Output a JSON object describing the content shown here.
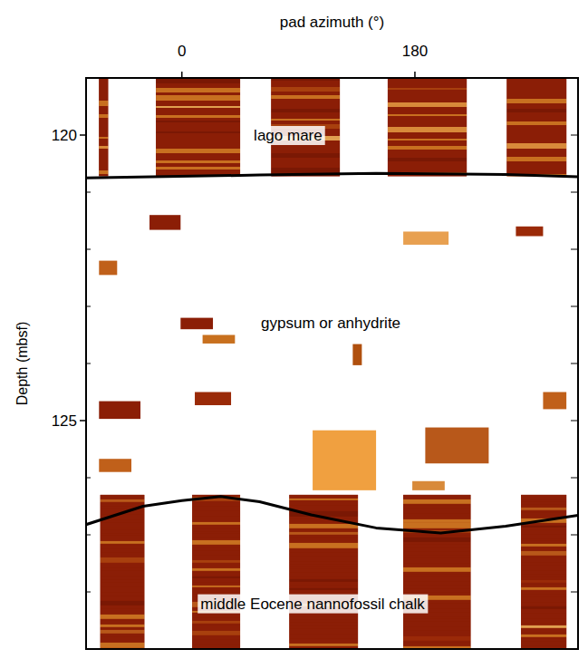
{
  "chart_data": {
    "type": "borehole_image",
    "xlabel": "pad azimuth (°)",
    "ylabel": "Depth (mbsf)",
    "xlim": [
      -74,
      306
    ],
    "xticks": [
      0,
      180
    ],
    "ylim": [
      119,
      129
    ],
    "yticks": [
      120,
      125
    ],
    "yticks_minor": [
      121,
      122,
      123,
      124,
      126,
      127,
      128
    ],
    "color": "#8b1e06",
    "sections": [
      {
        "depth_range": [
          119,
          120.72
        ],
        "azimuth_ranges": [
          [
            -64,
            -57
          ],
          [
            -20,
            45
          ],
          [
            69,
            122
          ],
          [
            159,
            220
          ],
          [
            251,
            297
          ]
        ]
      },
      {
        "depth_range": [
          126.3,
          129
        ],
        "azimuth_ranges": [
          [
            -63,
            -29
          ],
          [
            8,
            45
          ],
          [
            83,
            136
          ],
          [
            171,
            223
          ],
          [
            262,
            297
          ]
        ]
      }
    ],
    "patches": [
      {
        "azimuth": [
          -25,
          -1
        ],
        "depth": [
          121.4,
          121.66
        ],
        "color": "#8b1e06"
      },
      {
        "azimuth": [
          171,
          206
        ],
        "depth": [
          121.69,
          121.92
        ],
        "color": "#e8a050"
      },
      {
        "azimuth": [
          258,
          279
        ],
        "depth": [
          121.6,
          121.77
        ],
        "color": "#9a2a08"
      },
      {
        "azimuth": [
          -64,
          -50
        ],
        "depth": [
          122.2,
          122.45
        ],
        "color": "#c0601a"
      },
      {
        "azimuth": [
          -1,
          24
        ],
        "depth": [
          123.2,
          123.4
        ],
        "color": "#8b1e06"
      },
      {
        "azimuth": [
          16,
          41
        ],
        "depth": [
          123.5,
          123.65
        ],
        "color": "#c8701e"
      },
      {
        "azimuth": [
          132,
          139
        ],
        "depth": [
          123.66,
          124.03
        ],
        "color": "#b0500e"
      },
      {
        "azimuth": [
          -64,
          -32
        ],
        "depth": [
          124.66,
          124.97
        ],
        "color": "#8b1e06"
      },
      {
        "azimuth": [
          10,
          38
        ],
        "depth": [
          124.5,
          124.73
        ],
        "color": "#9a2a08"
      },
      {
        "azimuth": [
          279,
          297
        ],
        "depth": [
          124.5,
          124.8
        ],
        "color": "#c0601a"
      },
      {
        "azimuth": [
          101,
          150
        ],
        "depth": [
          125.17,
          126.22
        ],
        "color": "#f0a040"
      },
      {
        "azimuth": [
          188,
          237
        ],
        "depth": [
          125.12,
          125.75
        ],
        "color": "#b8581a"
      },
      {
        "azimuth": [
          -64,
          -39
        ],
        "depth": [
          125.67,
          125.9
        ],
        "color": "#c0601a"
      },
      {
        "azimuth": [
          178,
          203
        ],
        "depth": [
          126.06,
          126.22
        ],
        "color": "#d88a3a"
      }
    ],
    "boundaries": [
      {
        "azimuth": [
          -74,
          60,
          150,
          250,
          306
        ],
        "depth": [
          120.75,
          120.7,
          120.67,
          120.69,
          120.73
        ]
      },
      {
        "azimuth": [
          -74,
          -30,
          0,
          30,
          60,
          100,
          150,
          200,
          250,
          306
        ],
        "depth": [
          126.82,
          126.5,
          126.4,
          126.33,
          126.42,
          126.65,
          126.88,
          126.97,
          126.85,
          126.66
        ]
      }
    ],
    "annotations": [
      {
        "text": "lago mare",
        "azimuth": 82,
        "depth": 120.0
      },
      {
        "text": "gypsum or anhydrite",
        "azimuth": 115,
        "depth": 123.28
      },
      {
        "text": "middle Eocene nannofossil chalk",
        "azimuth": 101,
        "depth": 128.2
      }
    ]
  }
}
